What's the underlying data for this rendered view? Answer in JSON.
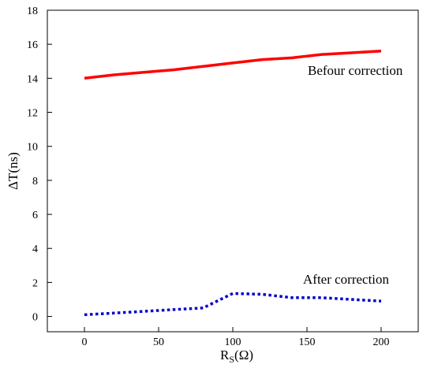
{
  "chart_data": {
    "type": "line",
    "title": "",
    "xlabel": {
      "main": "R",
      "sub": "S",
      "rest": "(Ω)"
    },
    "ylabel": "ΔT(ns)",
    "xlim": [
      -25,
      225
    ],
    "ylim": [
      -0.9,
      18
    ],
    "x_ticks": [
      0,
      50,
      100,
      150,
      200
    ],
    "y_ticks": [
      0,
      2,
      4,
      6,
      8,
      10,
      12,
      14,
      16,
      18
    ],
    "grid": false,
    "series": [
      {
        "name": "Befour correction",
        "color": "#ff0000",
        "style": "solid",
        "x": [
          0,
          20,
          40,
          60,
          80,
          100,
          120,
          140,
          160,
          180,
          200
        ],
        "y": [
          14.0,
          14.2,
          14.35,
          14.5,
          14.7,
          14.9,
          15.1,
          15.2,
          15.4,
          15.5,
          15.6
        ]
      },
      {
        "name": "After correction",
        "color": "#0000cc",
        "style": "dotted",
        "x": [
          0,
          20,
          40,
          60,
          80,
          100,
          120,
          140,
          160,
          180,
          200
        ],
        "y": [
          0.1,
          0.2,
          0.3,
          0.4,
          0.5,
          1.35,
          1.3,
          1.1,
          1.1,
          1.0,
          0.9
        ]
      }
    ]
  }
}
